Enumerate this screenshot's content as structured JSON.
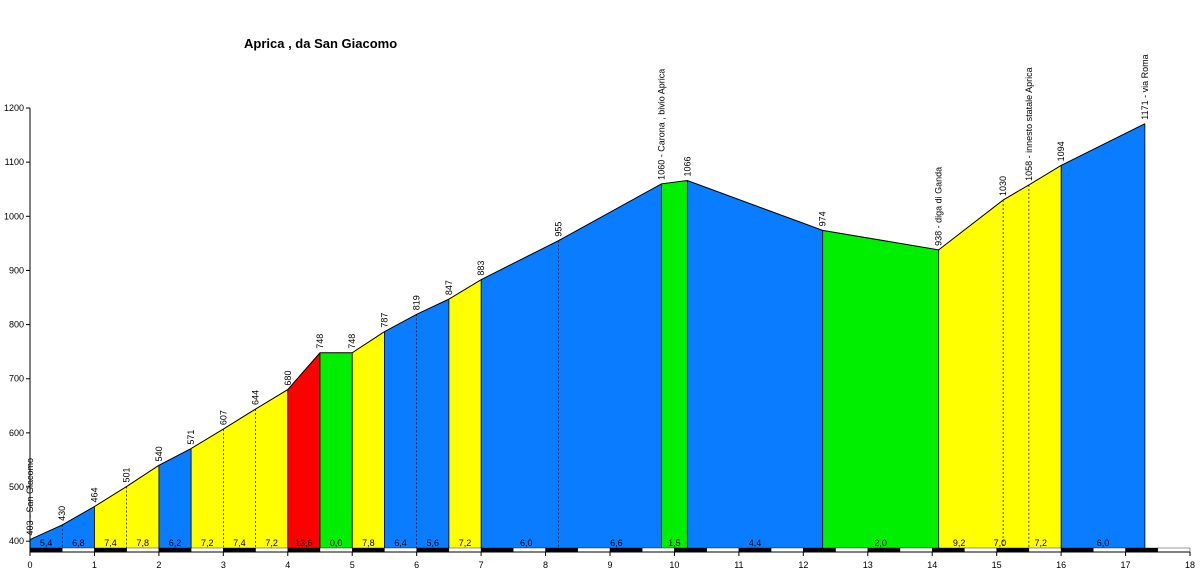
{
  "chart_data": {
    "type": "area",
    "title": "Aprica , da San Giacomo",
    "xlim": [
      0,
      18
    ],
    "ylim": [
      380,
      1200
    ],
    "x_ticks": [
      "0",
      "1",
      "2",
      "3",
      "4",
      "5",
      "6",
      "7",
      "8",
      "9",
      "10",
      "11",
      "12",
      "13",
      "14",
      "15",
      "16",
      "17",
      "18"
    ],
    "y_ticks": [
      "400",
      "500",
      "600",
      "700",
      "800",
      "900",
      "1000",
      "1100",
      "1200"
    ],
    "points": [
      {
        "x": 0.0,
        "y": 403,
        "label": "403 - San Giacomo"
      },
      {
        "x": 0.5,
        "y": 430,
        "label": "430"
      },
      {
        "x": 1.0,
        "y": 464,
        "label": "464"
      },
      {
        "x": 1.5,
        "y": 501,
        "label": "501"
      },
      {
        "x": 2.0,
        "y": 540,
        "label": "540"
      },
      {
        "x": 2.5,
        "y": 571,
        "label": "571"
      },
      {
        "x": 3.0,
        "y": 607,
        "label": "607"
      },
      {
        "x": 3.5,
        "y": 644,
        "label": "644"
      },
      {
        "x": 4.0,
        "y": 680,
        "label": "680"
      },
      {
        "x": 4.5,
        "y": 748,
        "label": "748"
      },
      {
        "x": 5.0,
        "y": 748,
        "label": "748"
      },
      {
        "x": 5.5,
        "y": 787,
        "label": "787"
      },
      {
        "x": 6.0,
        "y": 819,
        "label": "819"
      },
      {
        "x": 6.5,
        "y": 847,
        "label": "847"
      },
      {
        "x": 7.0,
        "y": 883,
        "label": "883"
      },
      {
        "x": 8.2,
        "y": 955,
        "label": "955"
      },
      {
        "x": 9.8,
        "y": 1060,
        "label": "1060 - Carona , bivio Aprica"
      },
      {
        "x": 10.2,
        "y": 1066,
        "label": "1066"
      },
      {
        "x": 12.3,
        "y": 974,
        "label": "974"
      },
      {
        "x": 14.1,
        "y": 938,
        "label": "938 - diga di Ganda"
      },
      {
        "x": 15.1,
        "y": 1030,
        "label": "1030"
      },
      {
        "x": 15.5,
        "y": 1058,
        "label": "1058 - innesto statale Aprica"
      },
      {
        "x": 16.0,
        "y": 1094,
        "label": "1094"
      },
      {
        "x": 17.3,
        "y": 1171,
        "label": "1171 - via Roma"
      }
    ],
    "segments": [
      {
        "x0": 0.0,
        "x1": 1.0,
        "color": "#0a7cff",
        "grade": [
          "5,4",
          "6,8"
        ]
      },
      {
        "x0": 1.0,
        "x1": 2.0,
        "color": "#ffff00",
        "grade": [
          "7,4",
          "7,8"
        ]
      },
      {
        "x0": 2.0,
        "x1": 2.5,
        "color": "#0a7cff",
        "grade": [
          "6,2"
        ]
      },
      {
        "x0": 2.5,
        "x1": 4.0,
        "color": "#ffff00",
        "grade": [
          "7,2",
          "7,4",
          "7,2"
        ]
      },
      {
        "x0": 4.0,
        "x1": 4.5,
        "color": "#ff0000",
        "grade": [
          "13,6"
        ]
      },
      {
        "x0": 4.5,
        "x1": 5.0,
        "color": "#00ee00",
        "grade": [
          "0,0"
        ]
      },
      {
        "x0": 5.0,
        "x1": 5.5,
        "color": "#ffff00",
        "grade": [
          "7,8"
        ]
      },
      {
        "x0": 5.5,
        "x1": 6.5,
        "color": "#0a7cff",
        "grade": [
          "6,4",
          "5,6"
        ]
      },
      {
        "x0": 6.5,
        "x1": 7.0,
        "color": "#ffff00",
        "grade": [
          "7,2"
        ]
      },
      {
        "x0": 7.0,
        "x1": 9.8,
        "color": "#0a7cff",
        "grade": [
          "6,0",
          "6,6"
        ]
      },
      {
        "x0": 9.8,
        "x1": 10.2,
        "color": "#00ee00",
        "grade": [
          "1,5"
        ]
      },
      {
        "x0": 10.2,
        "x1": 12.3,
        "color": "#0a7cff",
        "grade": [
          "4,4"
        ]
      },
      {
        "x0": 12.3,
        "x1": 14.1,
        "color": "#00ee00",
        "grade": [
          "2,0"
        ]
      },
      {
        "x0": 14.1,
        "x1": 16.0,
        "color": "#ffff00",
        "grade": [
          "9,2",
          "7,0",
          "7,2"
        ]
      },
      {
        "x0": 16.0,
        "x1": 17.3,
        "color": "#0a7cff",
        "grade": [
          "6,0"
        ]
      }
    ]
  }
}
